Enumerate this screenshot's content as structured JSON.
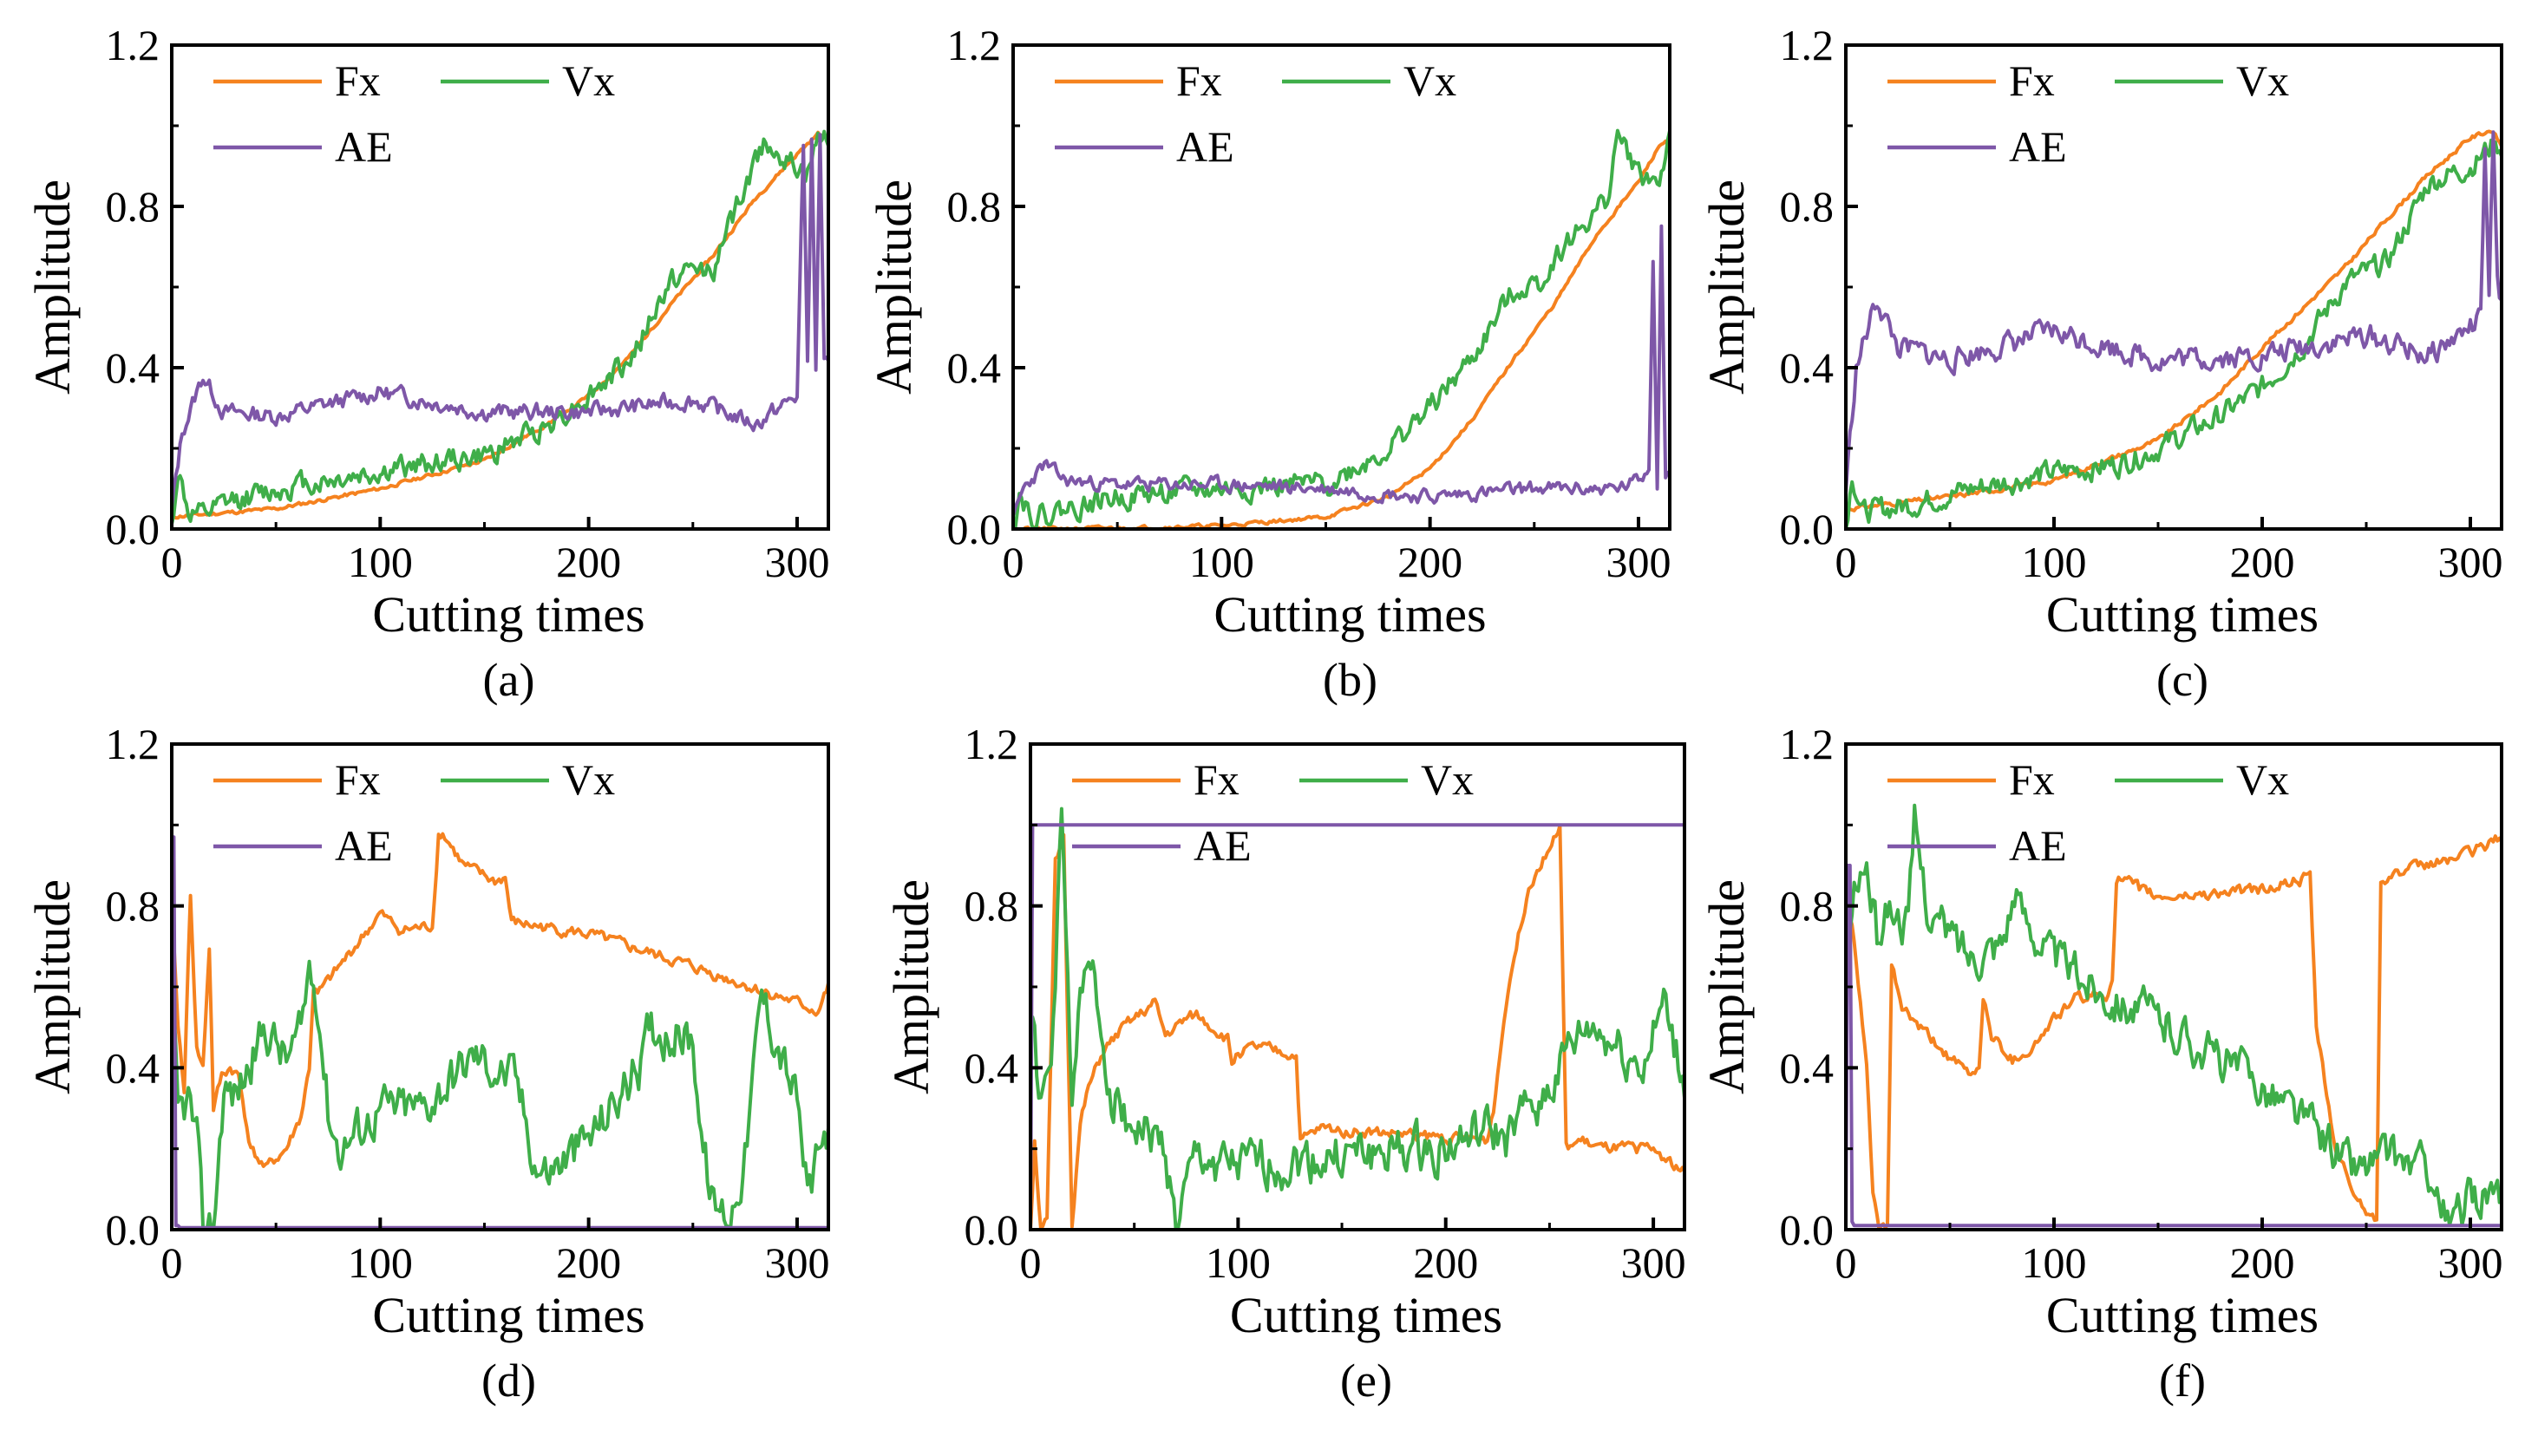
{
  "figure": {
    "panel_order": [
      "a",
      "b",
      "c",
      "d",
      "e",
      "f"
    ]
  },
  "chart_data": [
    {
      "id": "a",
      "caption": "(a)",
      "type": "line",
      "xlabel": "Cutting times",
      "ylabel": "Amplitude",
      "xlim": [
        0,
        315
      ],
      "ylim": [
        0,
        1.2
      ],
      "xticks": [
        0,
        100,
        200,
        300
      ],
      "yticks": [
        0.0,
        0.4,
        0.8,
        1.2
      ],
      "ytick_labels": [
        "0.0",
        "0.4",
        "0.8",
        "1.2"
      ],
      "legend": [
        "Fx",
        "Vx",
        "AE"
      ],
      "series": [
        {
          "name": "Fx",
          "color": "#F5821F",
          "noise": 0.004,
          "seed": 11,
          "x": [
            0,
            50,
            100,
            150,
            180,
            200,
            220,
            240,
            260,
            280,
            300,
            310,
            315
          ],
          "y": [
            0.03,
            0.05,
            0.1,
            0.17,
            0.26,
            0.33,
            0.43,
            0.56,
            0.68,
            0.82,
            0.93,
            0.98,
            0.97
          ]
        },
        {
          "name": "Vx",
          "color": "#3FAE49",
          "noise": 0.025,
          "seed": 12,
          "x": [
            0,
            3,
            8,
            15,
            30,
            60,
            100,
            130,
            150,
            180,
            200,
            220,
            240,
            250,
            260,
            270,
            285,
            295,
            305,
            310,
            315
          ],
          "y": [
            0.0,
            0.15,
            0.04,
            0.03,
            0.07,
            0.11,
            0.14,
            0.17,
            0.18,
            0.26,
            0.33,
            0.42,
            0.62,
            0.64,
            0.65,
            0.78,
            0.97,
            0.91,
            0.88,
            0.96,
            0.98
          ]
        },
        {
          "name": "AE",
          "color": "#7E57A8",
          "noise": 0.018,
          "seed": 13,
          "x": [
            0,
            5,
            15,
            25,
            50,
            100,
            150,
            200,
            250,
            280,
            300,
            303,
            305,
            307,
            309,
            311,
            313,
            315
          ],
          "y": [
            0.05,
            0.24,
            0.38,
            0.29,
            0.28,
            0.34,
            0.29,
            0.29,
            0.32,
            0.26,
            0.33,
            0.95,
            0.42,
            0.96,
            0.4,
            0.98,
            0.42,
            0.4
          ]
        }
      ]
    },
    {
      "id": "b",
      "caption": "(b)",
      "type": "line",
      "xlabel": "Cutting times",
      "ylabel": "Amplitude",
      "xlim": [
        0,
        315
      ],
      "ylim": [
        0,
        1.2
      ],
      "xticks": [
        0,
        100,
        200,
        300
      ],
      "yticks": [
        0.0,
        0.4,
        0.8,
        1.2
      ],
      "ytick_labels": [
        "0.0",
        "0.4",
        "0.8",
        "1.2"
      ],
      "legend": [
        "Fx",
        "Vx",
        "AE"
      ],
      "series": [
        {
          "name": "Fx",
          "color": "#F5821F",
          "noise": 0.004,
          "seed": 21,
          "x": [
            0,
            50,
            100,
            150,
            180,
            200,
            220,
            240,
            260,
            280,
            300,
            310,
            315
          ],
          "y": [
            0.0,
            0.002,
            0.008,
            0.03,
            0.08,
            0.15,
            0.27,
            0.42,
            0.56,
            0.73,
            0.86,
            0.95,
            0.97
          ]
        },
        {
          "name": "Vx",
          "color": "#3FAE49",
          "noise": 0.025,
          "seed": 22,
          "x": [
            0,
            3,
            10,
            50,
            100,
            150,
            180,
            200,
            220,
            240,
            255,
            260,
            270,
            285,
            290,
            300,
            310,
            315
          ],
          "y": [
            0.0,
            0.09,
            0.03,
            0.08,
            0.1,
            0.11,
            0.2,
            0.3,
            0.42,
            0.59,
            0.62,
            0.68,
            0.73,
            0.82,
            0.98,
            0.88,
            0.86,
            0.98
          ]
        },
        {
          "name": "AE",
          "color": "#7E57A8",
          "noise": 0.015,
          "seed": 23,
          "x": [
            0,
            5,
            15,
            25,
            50,
            100,
            150,
            200,
            250,
            290,
            300,
            305,
            307,
            309,
            311,
            313,
            315
          ],
          "y": [
            0.02,
            0.1,
            0.16,
            0.12,
            0.11,
            0.11,
            0.1,
            0.08,
            0.1,
            0.1,
            0.12,
            0.15,
            0.68,
            0.12,
            0.75,
            0.14,
            0.15
          ]
        }
      ]
    },
    {
      "id": "c",
      "caption": "(c)",
      "type": "line",
      "xlabel": "Cutting times",
      "ylabel": "Amplitude",
      "xlim": [
        0,
        315
      ],
      "ylim": [
        0,
        1.2
      ],
      "xticks": [
        0,
        100,
        200,
        300
      ],
      "yticks": [
        0.0,
        0.4,
        0.8,
        1.2
      ],
      "ytick_labels": [
        "0.0",
        "0.4",
        "0.8",
        "1.2"
      ],
      "legend": [
        "Fx",
        "Vx",
        "AE"
      ],
      "series": [
        {
          "name": "Fx",
          "color": "#F5821F",
          "noise": 0.005,
          "seed": 31,
          "x": [
            0,
            50,
            100,
            150,
            180,
            200,
            220,
            240,
            260,
            280,
            300,
            310,
            315
          ],
          "y": [
            0.05,
            0.08,
            0.12,
            0.22,
            0.34,
            0.45,
            0.55,
            0.65,
            0.77,
            0.88,
            0.97,
            0.99,
            0.95
          ]
        },
        {
          "name": "Vx",
          "color": "#3FAE49",
          "noise": 0.025,
          "seed": 32,
          "x": [
            0,
            3,
            8,
            30,
            60,
            100,
            130,
            150,
            180,
            200,
            220,
            240,
            260,
            280,
            290,
            300,
            310,
            315
          ],
          "y": [
            0.0,
            0.14,
            0.04,
            0.06,
            0.1,
            0.14,
            0.16,
            0.2,
            0.28,
            0.35,
            0.46,
            0.61,
            0.66,
            0.86,
            0.88,
            0.9,
            0.95,
            0.95
          ]
        },
        {
          "name": "AE",
          "color": "#7E57A8",
          "noise": 0.025,
          "seed": 33,
          "x": [
            0,
            5,
            15,
            25,
            50,
            100,
            150,
            200,
            250,
            280,
            300,
            305,
            307,
            309,
            311,
            313,
            315
          ],
          "y": [
            0.1,
            0.4,
            0.57,
            0.45,
            0.42,
            0.49,
            0.42,
            0.43,
            0.48,
            0.43,
            0.5,
            0.52,
            0.95,
            0.55,
            0.98,
            0.6,
            0.55
          ]
        }
      ]
    },
    {
      "id": "d",
      "caption": "(d)",
      "type": "line",
      "xlabel": "Cutting times",
      "ylabel": "Amplitude",
      "xlim": [
        0,
        315
      ],
      "ylim": [
        0,
        1.2
      ],
      "xticks": [
        0,
        100,
        200,
        300
      ],
      "yticks": [
        0.0,
        0.4,
        0.8,
        1.2
      ],
      "ytick_labels": [
        "0.0",
        "0.4",
        "0.8",
        "1.2"
      ],
      "legend": [
        "Fx",
        "Vx",
        "AE"
      ],
      "series": [
        {
          "name": "Fx",
          "color": "#F5821F",
          "noise": 0.012,
          "seed": 41,
          "x": [
            0,
            3,
            6,
            9,
            12,
            15,
            18,
            20,
            24,
            28,
            32,
            38,
            45,
            55,
            62,
            66,
            68,
            70,
            100,
            110,
            125,
            128,
            130,
            140,
            155,
            160,
            163,
            200,
            250,
            300,
            310,
            315
          ],
          "y": [
            0.82,
            0.5,
            0.35,
            0.83,
            0.45,
            0.4,
            0.7,
            0.3,
            0.38,
            0.4,
            0.38,
            0.2,
            0.15,
            0.2,
            0.28,
            0.4,
            0.6,
            0.58,
            0.78,
            0.74,
            0.75,
            0.98,
            0.98,
            0.9,
            0.86,
            0.87,
            0.76,
            0.73,
            0.65,
            0.56,
            0.54,
            0.6
          ]
        },
        {
          "name": "Vx",
          "color": "#3FAE49",
          "noise": 0.05,
          "seed": 42,
          "x": [
            0,
            3,
            8,
            12,
            15,
            20,
            25,
            30,
            35,
            45,
            55,
            62,
            66,
            70,
            75,
            80,
            100,
            120,
            145,
            165,
            175,
            180,
            200,
            225,
            230,
            250,
            255,
            260,
            268,
            275,
            283,
            300,
            305,
            315
          ],
          "y": [
            0.6,
            0.28,
            0.32,
            0.22,
            0.0,
            0.01,
            0.35,
            0.33,
            0.38,
            0.5,
            0.42,
            0.48,
            0.65,
            0.58,
            0.3,
            0.2,
            0.3,
            0.3,
            0.43,
            0.37,
            0.16,
            0.14,
            0.22,
            0.41,
            0.5,
            0.47,
            0.2,
            0.05,
            0.04,
            0.18,
            0.58,
            0.32,
            0.08,
            0.25
          ]
        },
        {
          "name": "AE",
          "color": "#7E57A8",
          "noise": 0.0,
          "seed": 43,
          "x": [
            0,
            1,
            2,
            3,
            4,
            315
          ],
          "y": [
            0.97,
            0.97,
            0.01,
            0.01,
            0.005,
            0.005
          ]
        }
      ]
    },
    {
      "id": "e",
      "caption": "(e)",
      "type": "line",
      "xlabel": "Cutting times",
      "ylabel": "Amplitude",
      "xlim": [
        0,
        315
      ],
      "ylim": [
        0,
        1.2
      ],
      "xticks": [
        0,
        100,
        200,
        300
      ],
      "yticks": [
        0.0,
        0.4,
        0.8,
        1.2
      ],
      "ytick_labels": [
        "0.0",
        "0.4",
        "0.8",
        "1.2"
      ],
      "legend": [
        "Fx",
        "Vx",
        "AE"
      ],
      "series": [
        {
          "name": "Fx",
          "color": "#F5821F",
          "noise": 0.012,
          "seed": 51,
          "x": [
            0,
            2,
            5,
            8,
            12,
            16,
            20,
            24,
            28,
            35,
            45,
            60,
            65,
            75,
            80,
            95,
            97,
            100,
            110,
            128,
            130,
            140,
            220,
            223,
            230,
            240,
            250,
            255,
            258,
            265,
            275,
            300,
            315
          ],
          "y": [
            0.0,
            0.22,
            0.0,
            0.02,
            0.9,
            0.97,
            0.02,
            0.26,
            0.35,
            0.44,
            0.5,
            0.56,
            0.48,
            0.52,
            0.53,
            0.47,
            0.41,
            0.44,
            0.45,
            0.43,
            0.22,
            0.25,
            0.22,
            0.3,
            0.6,
            0.85,
            0.95,
            0.99,
            0.2,
            0.22,
            0.2,
            0.2,
            0.14
          ]
        },
        {
          "name": "Vx",
          "color": "#3FAE49",
          "noise": 0.05,
          "seed": 52,
          "x": [
            0,
            5,
            10,
            15,
            20,
            25,
            30,
            40,
            50,
            65,
            70,
            80,
            100,
            150,
            200,
            220,
            230,
            240,
            250,
            260,
            270,
            290,
            295,
            305,
            315
          ],
          "y": [
            0.55,
            0.3,
            0.4,
            1.0,
            0.35,
            0.6,
            0.62,
            0.32,
            0.26,
            0.2,
            0.0,
            0.18,
            0.15,
            0.18,
            0.2,
            0.24,
            0.22,
            0.3,
            0.35,
            0.45,
            0.5,
            0.42,
            0.4,
            0.55,
            0.35
          ]
        },
        {
          "name": "AE",
          "color": "#7E57A8",
          "noise": 0.0,
          "seed": 53,
          "x": [
            0,
            1,
            2,
            315
          ],
          "y": [
            0.0,
            1.0,
            1.0,
            1.0
          ]
        }
      ]
    },
    {
      "id": "f",
      "caption": "(f)",
      "type": "line",
      "xlabel": "Cutting times",
      "ylabel": "Amplitude",
      "xlim": [
        0,
        315
      ],
      "ylim": [
        0,
        1.2
      ],
      "xticks": [
        0,
        100,
        200,
        300
      ],
      "yticks": [
        0.0,
        0.4,
        0.8,
        1.2
      ],
      "ytick_labels": [
        "0.0",
        "0.4",
        "0.8",
        "1.2"
      ],
      "legend": [
        "Fx",
        "Vx",
        "AE"
      ],
      "series": [
        {
          "name": "Fx",
          "color": "#F5821F",
          "noise": 0.012,
          "seed": 61,
          "x": [
            0,
            3,
            6,
            10,
            13,
            16,
            20,
            22,
            27,
            35,
            45,
            55,
            60,
            64,
            66,
            70,
            80,
            90,
            100,
            110,
            125,
            128,
            130,
            150,
            200,
            223,
            226,
            235,
            245,
            253,
            255,
            257,
            300,
            315
          ],
          "y": [
            0.8,
            0.75,
            0.6,
            0.4,
            0.1,
            0.0,
            0.0,
            0.65,
            0.55,
            0.5,
            0.45,
            0.4,
            0.38,
            0.4,
            0.58,
            0.48,
            0.42,
            0.45,
            0.52,
            0.57,
            0.58,
            0.62,
            0.87,
            0.82,
            0.84,
            0.87,
            0.5,
            0.2,
            0.08,
            0.03,
            0.03,
            0.87,
            0.93,
            0.97
          ]
        },
        {
          "name": "Vx",
          "color": "#3FAE49",
          "noise": 0.045,
          "seed": 62,
          "x": [
            0,
            5,
            10,
            15,
            20,
            30,
            33,
            40,
            60,
            75,
            80,
            100,
            120,
            150,
            180,
            200,
            225,
            245,
            260,
            280,
            290,
            300,
            310,
            315
          ],
          "y": [
            0.7,
            0.85,
            0.9,
            0.72,
            0.8,
            0.75,
            1.0,
            0.78,
            0.68,
            0.72,
            0.82,
            0.67,
            0.6,
            0.52,
            0.42,
            0.36,
            0.25,
            0.15,
            0.18,
            0.15,
            0.0,
            0.08,
            0.1,
            0.04
          ]
        },
        {
          "name": "AE",
          "color": "#7E57A8",
          "noise": 0.0,
          "seed": 63,
          "x": [
            0,
            1,
            2,
            3,
            4,
            315
          ],
          "y": [
            0.0,
            0.9,
            0.9,
            0.02,
            0.01,
            0.01
          ]
        }
      ]
    }
  ]
}
